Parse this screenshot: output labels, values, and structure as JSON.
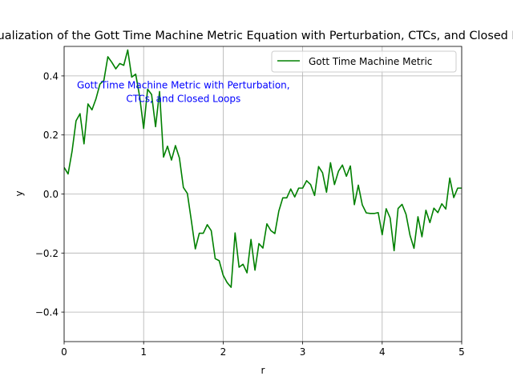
{
  "chart_data": {
    "type": "line",
    "title": "Visualization of the Gott Time Machine Metric Equation with Perturbation, CTCs, and Closed Loops",
    "xlabel": "r",
    "ylabel": "y",
    "xlim": [
      0,
      5
    ],
    "ylim": [
      -0.5,
      0.5
    ],
    "xticks": [
      0,
      1,
      2,
      3,
      4,
      5
    ],
    "xtick_labels": [
      "0",
      "1",
      "2",
      "3",
      "4",
      "5"
    ],
    "yticks": [
      -0.4,
      -0.2,
      0.0,
      0.2,
      0.4
    ],
    "ytick_labels": [
      "−0.4",
      "−0.2",
      "0.0",
      "0.2",
      "0.4"
    ],
    "grid": true,
    "legend_position": "upper right",
    "annotation": {
      "lines": [
        "Gott Time Machine Metric with Perturbation,",
        "CTCs, and Closed Loops"
      ],
      "x": 1.5,
      "y": 0.33,
      "color": "#0000ff"
    },
    "series": [
      {
        "name": "Gott Time Machine Metric",
        "color": "#008000",
        "x": [
          0.0,
          0.05,
          0.1,
          0.15,
          0.2,
          0.25,
          0.3,
          0.35,
          0.4,
          0.45,
          0.5,
          0.55,
          0.6,
          0.65,
          0.7,
          0.75,
          0.8,
          0.85,
          0.9,
          0.95,
          1.0,
          1.05,
          1.1,
          1.15,
          1.2,
          1.25,
          1.3,
          1.35,
          1.4,
          1.45,
          1.5,
          1.55,
          1.6,
          1.65,
          1.7,
          1.75,
          1.8,
          1.85,
          1.9,
          1.95,
          2.0,
          2.05,
          2.1,
          2.15,
          2.2,
          2.25,
          2.3,
          2.35,
          2.4,
          2.45,
          2.5,
          2.55,
          2.6,
          2.65,
          2.7,
          2.75,
          2.8,
          2.85,
          2.9,
          2.95,
          3.0,
          3.05,
          3.1,
          3.15,
          3.2,
          3.25,
          3.3,
          3.35,
          3.4,
          3.45,
          3.5,
          3.55,
          3.6,
          3.65,
          3.7,
          3.75,
          3.8,
          3.85,
          3.9,
          3.95,
          4.0,
          4.05,
          4.1,
          4.15,
          4.2,
          4.25,
          4.3,
          4.35,
          4.4,
          4.45,
          4.5,
          4.55,
          4.6,
          4.65,
          4.7,
          4.75,
          4.8,
          4.85,
          4.9,
          4.95,
          5.0
        ],
        "y": [
          0.09,
          0.068,
          0.145,
          0.248,
          0.272,
          0.17,
          0.305,
          0.285,
          0.322,
          0.372,
          0.385,
          0.465,
          0.446,
          0.424,
          0.442,
          0.436,
          0.488,
          0.396,
          0.406,
          0.33,
          0.222,
          0.355,
          0.337,
          0.228,
          0.347,
          0.125,
          0.162,
          0.115,
          0.164,
          0.122,
          0.022,
          0.002,
          -0.09,
          -0.186,
          -0.133,
          -0.133,
          -0.104,
          -0.124,
          -0.219,
          -0.226,
          -0.275,
          -0.3,
          -0.316,
          -0.132,
          -0.248,
          -0.238,
          -0.267,
          -0.154,
          -0.258,
          -0.168,
          -0.183,
          -0.101,
          -0.124,
          -0.134,
          -0.058,
          -0.013,
          -0.013,
          0.017,
          -0.01,
          0.02,
          0.02,
          0.045,
          0.032,
          -0.005,
          0.093,
          0.072,
          0.006,
          0.106,
          0.032,
          0.077,
          0.098,
          0.06,
          0.095,
          -0.036,
          0.03,
          -0.037,
          -0.064,
          -0.066,
          -0.066,
          -0.063,
          -0.138,
          -0.05,
          -0.081,
          -0.192,
          -0.049,
          -0.035,
          -0.069,
          -0.14,
          -0.184,
          -0.077,
          -0.145,
          -0.055,
          -0.097,
          -0.048,
          -0.063,
          -0.033,
          -0.051,
          0.054,
          -0.012,
          0.02,
          0.02
        ]
      }
    ]
  }
}
